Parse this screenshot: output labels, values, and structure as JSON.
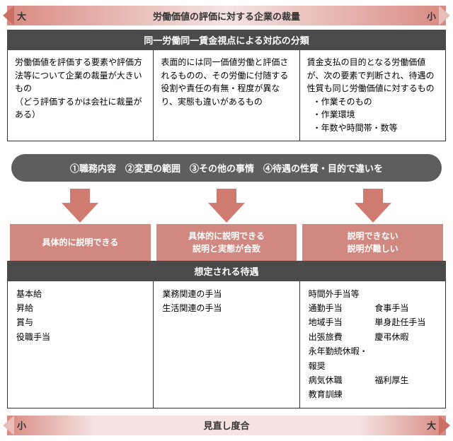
{
  "topbar": {
    "left": "大",
    "mid": "労働価値の評価に対する企業の裁量",
    "right": "小"
  },
  "header1": "同一労働同一賃金視点による対応の分類",
  "cols": [
    {
      "text": "労働価値を評価する要素や評価方法等について企業の裁量が大きいもの",
      "note": "（どう評価するかは会社に裁量がある）"
    },
    {
      "text": "表面的には同一価値労働と評価されるものの、その労働に付随する役割や責任の有無・程度が異なり、実態も違いがあるもの"
    },
    {
      "text": "賃金支払の目的となる労働価値が、次の要素で判断され、待遇の性質も同じ労働価値に対するもの",
      "bullets": [
        "作業そのもの",
        "作業環境",
        "年数や時間帯・数等"
      ]
    }
  ],
  "band": "①職務内容　②変更の範囲　③その他の事情　④待遇の性質・目的で違いを",
  "boxes": [
    {
      "l1": "具体的に説明できる"
    },
    {
      "l1": "具体的に説明できる",
      "l2": "説明と実態が合致"
    },
    {
      "l1": "説明できない",
      "l2": "説明が難しい"
    }
  ],
  "header2": "想定される待遇",
  "cols2": {
    "c1": [
      "基本給",
      "昇給",
      "賞与",
      "役職手当"
    ],
    "c2": [
      "業務関連の手当",
      "生活関連の手当"
    ],
    "c3": [
      [
        "時間外手当等",
        ""
      ],
      [
        "通勤手当",
        "食事手当"
      ],
      [
        "地域手当",
        "単身赴任手当"
      ],
      [
        "出張旅費",
        "慶弔休暇"
      ],
      [
        "永年勤続休暇・報奨",
        ""
      ],
      [
        "病気休職",
        "福利厚生"
      ],
      [
        "教育訓練",
        ""
      ]
    ]
  },
  "botbar": {
    "left": "小",
    "mid": "見直し度合",
    "right": "大"
  }
}
